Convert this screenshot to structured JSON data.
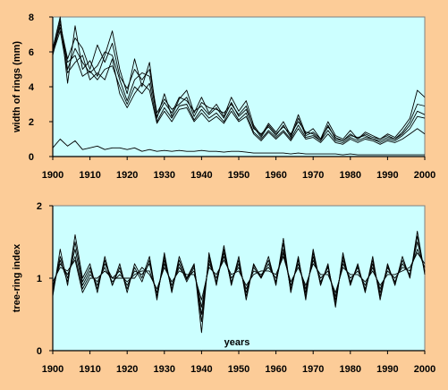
{
  "page": {
    "background": "#fccc98",
    "plot_background": "#ccffff",
    "line_color": "#000000"
  },
  "chart_data": [
    {
      "type": "line",
      "title": "",
      "xlabel": "",
      "ylabel": "width of rings (mm)",
      "xlim": [
        1900,
        2000
      ],
      "ylim": [
        0,
        8
      ],
      "x_ticks": [
        "1900",
        "1910",
        "1920",
        "1930",
        "1940",
        "1950",
        "1960",
        "1970",
        "1980",
        "1990",
        "2000"
      ],
      "y_ticks": [
        "0",
        "2",
        "4",
        "6",
        "8"
      ],
      "grid": false,
      "legend": "none",
      "x": [
        1900,
        1902,
        1904,
        1906,
        1908,
        1910,
        1912,
        1914,
        1916,
        1918,
        1920,
        1922,
        1924,
        1926,
        1928,
        1930,
        1932,
        1934,
        1936,
        1938,
        1940,
        1942,
        1944,
        1946,
        1948,
        1950,
        1952,
        1954,
        1956,
        1958,
        1960,
        1962,
        1964,
        1966,
        1968,
        1970,
        1972,
        1974,
        1976,
        1978,
        1980,
        1982,
        1984,
        1986,
        1988,
        1990,
        1992,
        1994,
        1996,
        1998,
        2000
      ],
      "series": [
        {
          "values": [
            6.2,
            8.0,
            4.2,
            7.5,
            5.0,
            5.5,
            4.6,
            5.8,
            7.2,
            5.0,
            3.6,
            5.6,
            4.0,
            5.4,
            2.2,
            3.6,
            2.3,
            3.3,
            3.8,
            2.5,
            3.4,
            2.5,
            3.0,
            2.3,
            3.4,
            2.6,
            3.2,
            1.8,
            1.2,
            1.9,
            1.4,
            2.0,
            1.2,
            2.4,
            1.3,
            1.6,
            1.0,
            2.0,
            1.2,
            1.0,
            1.5,
            1.0,
            1.4,
            1.2,
            1.0,
            1.3,
            1.1,
            1.6,
            2.2,
            3.8,
            3.4
          ]
        },
        {
          "values": [
            5.8,
            7.6,
            5.6,
            6.8,
            6.2,
            5.0,
            6.4,
            5.4,
            6.5,
            4.6,
            3.9,
            5.0,
            4.4,
            5.0,
            2.5,
            3.3,
            2.7,
            3.0,
            3.4,
            2.3,
            3.1,
            2.8,
            2.7,
            2.5,
            3.0,
            2.4,
            2.9,
            1.6,
            1.3,
            1.7,
            1.2,
            1.8,
            1.1,
            2.2,
            1.2,
            1.4,
            1.0,
            1.7,
            1.1,
            0.9,
            1.3,
            1.0,
            1.3,
            1.1,
            1.0,
            1.2,
            1.0,
            1.4,
            2.0,
            3.0,
            2.9
          ]
        },
        {
          "values": [
            6.0,
            7.8,
            5.0,
            6.2,
            5.4,
            4.8,
            5.2,
            6.0,
            5.8,
            4.4,
            3.2,
            4.4,
            4.8,
            4.6,
            2.3,
            3.1,
            2.5,
            3.4,
            3.2,
            2.6,
            2.9,
            2.4,
            2.8,
            2.2,
            3.1,
            2.3,
            2.7,
            1.7,
            1.1,
            1.8,
            1.3,
            1.7,
            1.3,
            2.0,
            1.4,
            1.3,
            0.9,
            1.8,
            1.0,
            0.9,
            1.2,
            1.1,
            1.2,
            1.0,
            0.9,
            1.1,
            1.0,
            1.3,
            1.8,
            2.6,
            2.4
          ]
        },
        {
          "values": [
            6.1,
            7.4,
            5.4,
            5.8,
            4.6,
            4.9,
            4.4,
            5.0,
            5.2,
            4.0,
            3.0,
            4.0,
            3.6,
            4.2,
            2.0,
            2.8,
            2.2,
            2.9,
            3.0,
            2.1,
            2.7,
            2.2,
            2.5,
            2.0,
            2.8,
            2.1,
            2.5,
            1.4,
            1.0,
            1.5,
            1.1,
            1.5,
            1.0,
            1.8,
            1.1,
            1.2,
            0.9,
            1.5,
            0.9,
            0.8,
            1.1,
            0.9,
            1.1,
            1.0,
            0.8,
            1.0,
            0.9,
            1.2,
            1.6,
            2.3,
            2.2
          ]
        },
        {
          "values": [
            5.9,
            7.2,
            4.8,
            5.4,
            5.8,
            4.4,
            4.8,
            4.4,
            5.6,
            3.6,
            2.8,
            3.6,
            4.2,
            3.8,
            1.9,
            2.6,
            2.0,
            2.7,
            2.8,
            2.0,
            2.5,
            2.0,
            2.3,
            1.9,
            2.6,
            2.0,
            2.3,
            1.3,
            0.9,
            1.4,
            1.0,
            1.4,
            0.9,
            1.6,
            1.0,
            1.1,
            0.8,
            1.3,
            0.8,
            0.7,
            1.0,
            0.8,
            1.0,
            0.9,
            0.7,
            0.9,
            0.8,
            1.0,
            1.3,
            1.6,
            1.3
          ]
        },
        {
          "values": [
            0.5,
            1.0,
            0.6,
            0.9,
            0.4,
            0.5,
            0.6,
            0.4,
            0.5,
            0.5,
            0.4,
            0.5,
            0.3,
            0.4,
            0.3,
            0.35,
            0.3,
            0.35,
            0.3,
            0.3,
            0.35,
            0.3,
            0.3,
            0.25,
            0.3,
            0.3,
            0.25,
            0.2,
            0.2,
            0.2,
            0.2,
            0.2,
            0.15,
            0.2,
            0.15,
            0.15,
            0.15,
            0.15,
            0.15,
            0.1,
            0.15,
            0.1,
            0.1,
            0.1,
            0.1,
            0.1,
            0.1,
            0.1,
            0.1,
            0.1,
            0.1
          ]
        }
      ]
    },
    {
      "type": "line",
      "title": "",
      "xlabel": "years",
      "ylabel": "tree-ring index",
      "xlim": [
        1900,
        2000
      ],
      "ylim": [
        0,
        2
      ],
      "x_ticks": [
        "1900",
        "1910",
        "1920",
        "1930",
        "1940",
        "1950",
        "1960",
        "1970",
        "1980",
        "1990",
        "2000"
      ],
      "y_ticks": [
        "0",
        "1",
        "2"
      ],
      "grid": false,
      "legend": "none",
      "x": [
        1900,
        1902,
        1904,
        1906,
        1908,
        1910,
        1912,
        1914,
        1916,
        1918,
        1920,
        1922,
        1924,
        1926,
        1928,
        1930,
        1932,
        1934,
        1936,
        1938,
        1940,
        1942,
        1944,
        1946,
        1948,
        1950,
        1952,
        1954,
        1956,
        1958,
        1960,
        1962,
        1964,
        1966,
        1968,
        1970,
        1972,
        1974,
        1976,
        1978,
        1980,
        1982,
        1984,
        1986,
        1988,
        1990,
        1992,
        1994,
        1996,
        1998,
        2000
      ],
      "series": [
        {
          "values": [
            0.75,
            1.4,
            0.9,
            1.6,
            1.0,
            1.2,
            0.8,
            1.3,
            0.9,
            1.2,
            0.8,
            1.2,
            1.0,
            1.3,
            0.7,
            1.35,
            0.8,
            1.3,
            1.0,
            1.2,
            0.25,
            1.35,
            0.9,
            1.45,
            0.9,
            1.3,
            0.7,
            1.2,
            1.0,
            1.3,
            0.9,
            1.55,
            0.8,
            1.3,
            0.7,
            1.4,
            0.9,
            1.2,
            0.6,
            1.35,
            0.9,
            1.2,
            0.8,
            1.3,
            0.7,
            1.2,
            0.9,
            1.3,
            1.0,
            1.65,
            1.05
          ]
        },
        {
          "values": [
            0.8,
            1.3,
            1.0,
            1.4,
            0.9,
            1.1,
            0.9,
            1.2,
            1.0,
            1.1,
            0.9,
            1.1,
            1.05,
            1.2,
            0.75,
            1.25,
            0.85,
            1.2,
            0.95,
            1.15,
            0.5,
            1.25,
            0.95,
            1.35,
            0.95,
            1.2,
            0.8,
            1.15,
            1.0,
            1.2,
            0.95,
            1.4,
            0.85,
            1.25,
            0.8,
            1.3,
            0.95,
            1.15,
            0.7,
            1.25,
            0.95,
            1.15,
            0.85,
            1.2,
            0.8,
            1.15,
            0.95,
            1.2,
            1.05,
            1.5,
            1.1
          ]
        },
        {
          "values": [
            0.9,
            1.2,
            1.05,
            1.3,
            0.85,
            1.05,
            0.95,
            1.15,
            0.95,
            1.05,
            0.95,
            1.05,
            1.1,
            1.1,
            0.8,
            1.2,
            0.9,
            1.15,
            1.0,
            1.1,
            0.6,
            1.2,
            1.0,
            1.3,
            1.0,
            1.15,
            0.85,
            1.1,
            1.05,
            1.15,
            1.0,
            1.35,
            0.9,
            1.2,
            0.85,
            1.25,
            1.0,
            1.1,
            0.75,
            1.2,
            1.0,
            1.1,
            0.9,
            1.15,
            0.85,
            1.1,
            1.0,
            1.15,
            1.1,
            1.4,
            1.15
          ]
        },
        {
          "values": [
            0.85,
            1.25,
            0.95,
            1.5,
            0.95,
            1.15,
            0.85,
            1.25,
            0.9,
            1.15,
            0.85,
            1.15,
            0.95,
            1.25,
            0.72,
            1.3,
            0.82,
            1.25,
            0.98,
            1.18,
            0.4,
            1.3,
            0.92,
            1.4,
            0.92,
            1.25,
            0.75,
            1.18,
            1.02,
            1.25,
            0.92,
            1.48,
            0.82,
            1.28,
            0.75,
            1.35,
            0.92,
            1.18,
            0.65,
            1.3,
            0.92,
            1.18,
            0.82,
            1.25,
            0.75,
            1.18,
            0.92,
            1.25,
            1.02,
            1.58,
            1.08
          ]
        },
        {
          "values": [
            0.95,
            1.15,
            1.1,
            1.25,
            0.8,
            1.0,
            1.0,
            1.1,
            1.0,
            1.0,
            1.0,
            1.0,
            1.15,
            1.05,
            0.85,
            1.15,
            0.95,
            1.1,
            1.05,
            1.05,
            0.7,
            1.15,
            1.05,
            1.25,
            1.05,
            1.1,
            0.9,
            1.05,
            1.1,
            1.1,
            1.05,
            1.3,
            0.95,
            1.15,
            0.9,
            1.2,
            1.05,
            1.05,
            0.8,
            1.15,
            1.05,
            1.05,
            0.95,
            1.1,
            0.9,
            1.05,
            1.05,
            1.1,
            1.15,
            1.35,
            1.2
          ]
        }
      ]
    }
  ]
}
